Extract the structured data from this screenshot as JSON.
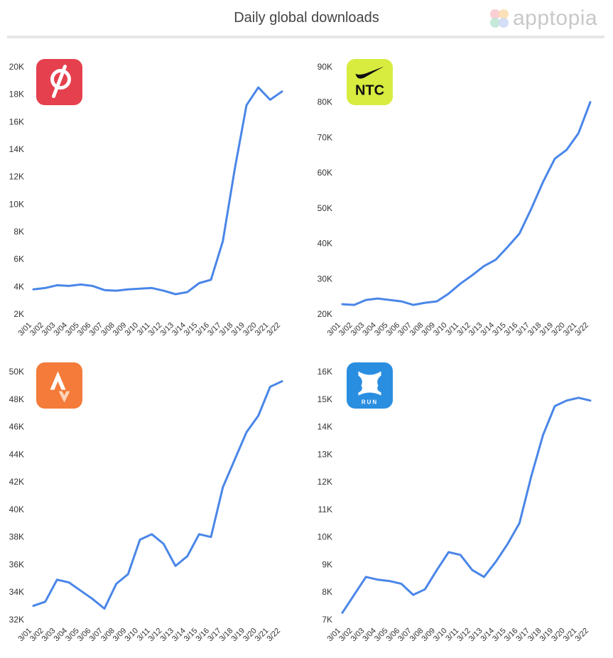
{
  "header": {
    "title": "Daily global downloads",
    "brand": "apptopia"
  },
  "colors": {
    "line": "#4a86e8",
    "title": "#444444",
    "brand": "#c8c8c8"
  },
  "chart_data": [
    {
      "type": "line",
      "app_icon": "peloton-icon",
      "icon_color": "#e5404e",
      "x": [
        "3/01",
        "3/02",
        "3/03",
        "3/04",
        "3/05",
        "3/06",
        "3/07",
        "3/08",
        "3/09",
        "3/10",
        "3/11",
        "3/12",
        "3/13",
        "3/14",
        "3/15",
        "3/16",
        "3/17",
        "3/18",
        "3/19",
        "3/20",
        "3/21",
        "3/22"
      ],
      "values": [
        3800,
        3900,
        4100,
        4050,
        4150,
        4050,
        3750,
        3700,
        3800,
        3850,
        3900,
        3700,
        3450,
        3600,
        4250,
        4500,
        7300,
        12500,
        17200,
        18500,
        17600,
        18200
      ],
      "yticks": [
        "2K",
        "4K",
        "6K",
        "8K",
        "10K",
        "12K",
        "14K",
        "16K",
        "18K",
        "20K"
      ],
      "ylim": [
        2000,
        20000
      ]
    },
    {
      "type": "line",
      "app_icon": "nike-ntc-icon",
      "icon_color": "#d7ec3f",
      "icon_text": "NTC",
      "x": [
        "3/01",
        "3/02",
        "3/03",
        "3/04",
        "3/05",
        "3/06",
        "3/07",
        "3/08",
        "3/09",
        "3/10",
        "3/11",
        "3/12",
        "3/13",
        "3/14",
        "3/15",
        "3/16",
        "3/17",
        "3/18",
        "3/19",
        "3/20",
        "3/21",
        "3/22"
      ],
      "values": [
        22800,
        22600,
        24000,
        24400,
        24000,
        23600,
        22600,
        23200,
        23600,
        25800,
        28600,
        31000,
        33600,
        35400,
        39000,
        42800,
        49800,
        57400,
        64000,
        66500,
        71200,
        80000
      ],
      "yticks": [
        "20K",
        "30K",
        "40K",
        "50K",
        "60K",
        "70K",
        "80K",
        "90K"
      ],
      "ylim": [
        20000,
        90000
      ]
    },
    {
      "type": "line",
      "app_icon": "strava-icon",
      "icon_color": "#f47b3a",
      "x": [
        "3/01",
        "3/02",
        "3/03",
        "3/04",
        "3/05",
        "3/06",
        "3/07",
        "3/08",
        "3/09",
        "3/10",
        "3/11",
        "3/12",
        "3/13",
        "3/14",
        "3/15",
        "3/16",
        "3/17",
        "3/18",
        "3/19",
        "3/20",
        "3/21",
        "3/22"
      ],
      "values": [
        33000,
        33300,
        34900,
        34700,
        34100,
        33500,
        32800,
        34600,
        35300,
        37800,
        38200,
        37500,
        35900,
        36600,
        38200,
        38000,
        41600,
        43600,
        45600,
        46800,
        48900,
        49300
      ],
      "yticks": [
        "32K",
        "34K",
        "36K",
        "38K",
        "40K",
        "42K",
        "44K",
        "46K",
        "48K",
        "50K"
      ],
      "ylim": [
        32000,
        50000
      ]
    },
    {
      "type": "line",
      "app_icon": "map-my-run-icon",
      "icon_color": "#2a8ee0",
      "icon_text": "RUN",
      "x": [
        "3/01",
        "3/02",
        "3/03",
        "3/04",
        "3/05",
        "3/06",
        "3/07",
        "3/08",
        "3/09",
        "3/10",
        "3/11",
        "3/12",
        "3/13",
        "3/14",
        "3/15",
        "3/16",
        "3/17",
        "3/18",
        "3/19",
        "3/20",
        "3/21",
        "3/22"
      ],
      "values": [
        7250,
        7900,
        8550,
        8450,
        8400,
        8300,
        7900,
        8100,
        8800,
        9450,
        9350,
        8800,
        8550,
        9100,
        9750,
        10500,
        12200,
        13700,
        14750,
        14950,
        15050,
        14950
      ],
      "yticks": [
        "7K",
        "8K",
        "9K",
        "10K",
        "11K",
        "12K",
        "13K",
        "14K",
        "15K",
        "16K"
      ],
      "ylim": [
        7000,
        16000
      ]
    }
  ]
}
